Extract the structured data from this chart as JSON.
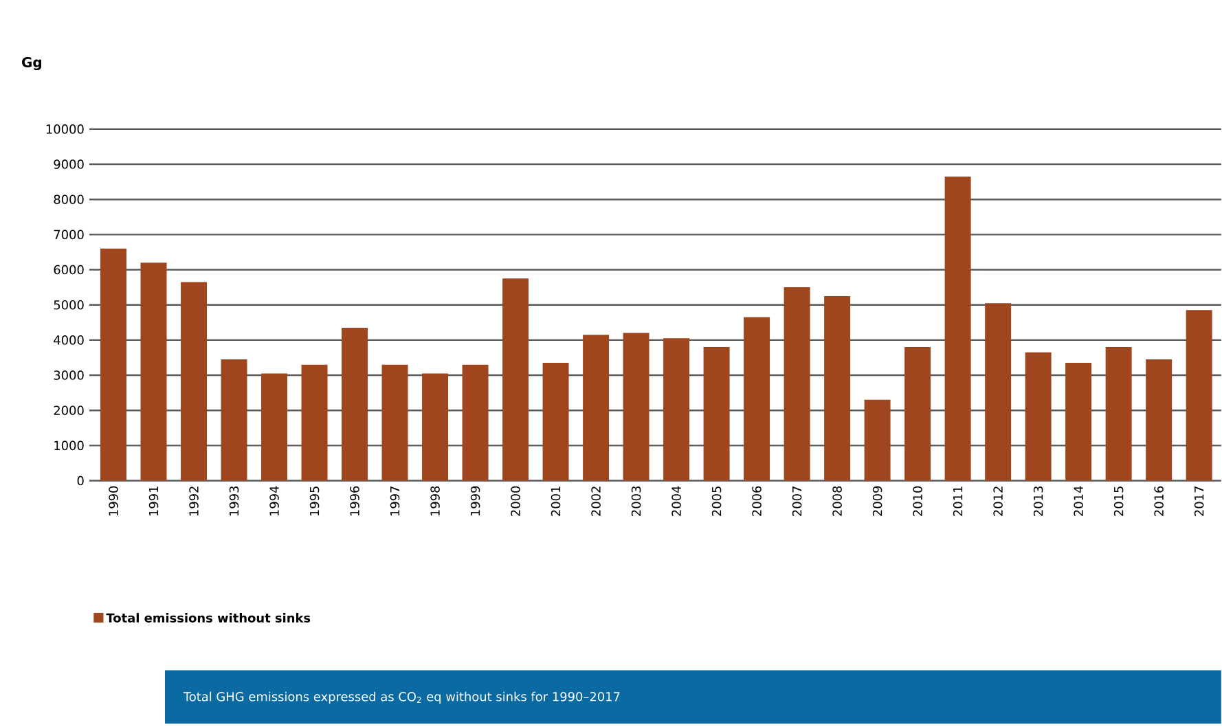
{
  "chart_data": {
    "type": "bar",
    "title": "Total GHG emissions expressed as CO$_{2}$ eq without sinks for 1990–2017",
    "ylabel": "Gg",
    "categories": [
      "1990",
      "1991",
      "1992",
      "1993",
      "1994",
      "1995",
      "1996",
      "1997",
      "1998",
      "1999",
      "2000",
      "2001",
      "2002",
      "2003",
      "2004",
      "2005",
      "2006",
      "2007",
      "2008",
      "2009",
      "2010",
      "2011",
      "2012",
      "2013",
      "2014",
      "2015",
      "2016",
      "2017"
    ],
    "series": [
      {
        "name": "Total emissions without sinks",
        "color": "#a0461e",
        "values": [
          6600,
          6200,
          5650,
          3450,
          3050,
          3300,
          4350,
          3300,
          3050,
          3300,
          5750,
          3350,
          4150,
          4200,
          4050,
          3800,
          4650,
          5500,
          5250,
          2300,
          3800,
          8650,
          5050,
          3650,
          3350,
          3800,
          3450,
          4850
        ]
      }
    ],
    "ylim": [
      0,
      10000
    ],
    "yticks": [
      0,
      1000,
      2000,
      3000,
      4000,
      5000,
      6000,
      7000,
      8000,
      9000,
      10000
    ],
    "grid": "y",
    "legend": "bottom left"
  }
}
